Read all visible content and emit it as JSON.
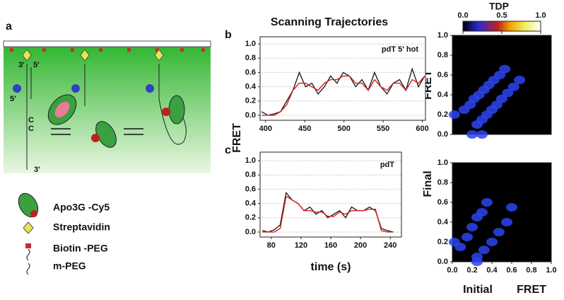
{
  "panel_a": {
    "label": "a",
    "strand_labels": [
      "3'",
      "5'",
      "5'",
      "C",
      "C",
      "3'"
    ],
    "legend": [
      "Apo3G -Cy5",
      "Streptavidin",
      "Biotin -PEG",
      "m-PEG"
    ]
  },
  "trajectories": {
    "title": "Scanning Trajectories",
    "ylabel": "FRET",
    "xlabel": "time (s)"
  },
  "tdp": {
    "title": "TDP",
    "colorbar_ticks": [
      {
        "value": 0,
        "label": "0.0"
      },
      {
        "value": 0.5,
        "label": "0.5"
      },
      {
        "value": 1,
        "label": "1.0"
      }
    ],
    "ylabel": [
      "Final",
      "FRET"
    ],
    "xlabel": [
      "Initial",
      "FRET"
    ]
  },
  "chart_data": [
    {
      "type": "line",
      "label": "b",
      "annotation": "pdT 5' hot",
      "x": [
        395,
        403,
        411,
        419,
        427,
        435,
        443,
        451,
        459,
        467,
        475,
        483,
        491,
        499,
        507,
        515,
        523,
        531,
        539,
        547,
        555,
        563,
        571,
        579,
        587,
        595,
        603
      ],
      "series": [
        {
          "color": "#222222",
          "values": [
            0.05,
            0.0,
            0.02,
            0.05,
            0.2,
            0.35,
            0.6,
            0.4,
            0.45,
            0.3,
            0.4,
            0.55,
            0.45,
            0.6,
            0.55,
            0.4,
            0.5,
            0.35,
            0.6,
            0.4,
            0.3,
            0.45,
            0.5,
            0.35,
            0.65,
            0.4,
            0.55
          ]
        },
        {
          "color": "#d62020",
          "values": [
            0.0,
            0.0,
            0.0,
            0.05,
            0.15,
            0.35,
            0.45,
            0.45,
            0.4,
            0.35,
            0.45,
            0.5,
            0.5,
            0.55,
            0.55,
            0.45,
            0.45,
            0.35,
            0.5,
            0.4,
            0.35,
            0.45,
            0.45,
            0.35,
            0.5,
            0.45,
            0.55
          ]
        }
      ],
      "xlim": [
        393,
        604
      ],
      "ylim": [
        -0.07,
        1.1
      ],
      "xticks": [
        400,
        450,
        500,
        550,
        600
      ],
      "yticks": [
        {
          "value": 0,
          "label": "0.0"
        },
        {
          "value": 0.2,
          "label": "0.2"
        },
        {
          "value": 0.4,
          "label": "0.4"
        },
        {
          "value": 0.6,
          "label": "0.6"
        },
        {
          "value": 0.8,
          "label": "0.8"
        },
        {
          "value": 1,
          "label": "1.0"
        }
      ],
      "grid": true
    },
    {
      "type": "line",
      "label": "c",
      "annotation": "pdT",
      "x": [
        68,
        76,
        84,
        92,
        100,
        108,
        116,
        124,
        132,
        140,
        148,
        156,
        164,
        172,
        180,
        188,
        196,
        204,
        212,
        220,
        228,
        236,
        244
      ],
      "series": [
        {
          "color": "#222222",
          "values": [
            0.02,
            0.0,
            0.03,
            0.1,
            0.55,
            0.45,
            0.4,
            0.3,
            0.35,
            0.25,
            0.3,
            0.2,
            0.25,
            0.3,
            0.2,
            0.35,
            0.3,
            0.3,
            0.35,
            0.3,
            0.05,
            0.02,
            0.0
          ]
        },
        {
          "color": "#d62020",
          "values": [
            0,
            0,
            0,
            0.05,
            0.5,
            0.45,
            0.4,
            0.3,
            0.3,
            0.28,
            0.28,
            0.22,
            0.22,
            0.28,
            0.25,
            0.3,
            0.3,
            0.3,
            0.32,
            0.32,
            0.02,
            0.0,
            0.0
          ]
        }
      ],
      "xlim": [
        65,
        255
      ],
      "ylim": [
        -0.07,
        1.12
      ],
      "xticks": [
        80,
        120,
        160,
        200,
        240
      ],
      "yticks": [
        {
          "value": 0,
          "label": "0.0"
        },
        {
          "value": 0.2,
          "label": "0.2"
        },
        {
          "value": 0.4,
          "label": "0.4"
        },
        {
          "value": 0.6,
          "label": "0.6"
        },
        {
          "value": 0.8,
          "label": "0.8"
        },
        {
          "value": 1,
          "label": "1.0"
        }
      ],
      "grid": true
    },
    {
      "type": "scatter",
      "color": "#2b44f0",
      "x": [
        0.12,
        0.18,
        0.22,
        0.27,
        0.32,
        0.37,
        0.42,
        0.48,
        0.53,
        0.25,
        0.3,
        0.35,
        0.4,
        0.45,
        0.5,
        0.56,
        0.62,
        0.68,
        0.02,
        0.2,
        0.3
      ],
      "values": [
        0.25,
        0.3,
        0.36,
        0.4,
        0.45,
        0.5,
        0.55,
        0.6,
        0.66,
        0.1,
        0.15,
        0.2,
        0.25,
        0.3,
        0.36,
        0.42,
        0.48,
        0.55,
        0.2,
        0.0,
        0.0
      ],
      "xlim": [
        0,
        1
      ],
      "ylim": [
        0,
        1
      ],
      "yticks": [
        {
          "value": 0,
          "label": "0.0"
        },
        {
          "value": 0.2,
          "label": "0.2"
        },
        {
          "value": 0.4,
          "label": "0.4"
        },
        {
          "value": 0.6,
          "label": "0.6"
        },
        {
          "value": 0.8,
          "label": "0.8"
        },
        {
          "value": 1,
          "label": "1.0"
        }
      ]
    },
    {
      "type": "scatter",
      "color": "#2b44f0",
      "x": [
        0.08,
        0.15,
        0.2,
        0.25,
        0.3,
        0.35,
        0.25,
        0.32,
        0.4,
        0.47,
        0.55,
        0.6,
        0.02,
        0.25
      ],
      "values": [
        0.15,
        0.25,
        0.35,
        0.45,
        0.5,
        0.6,
        0.05,
        0.12,
        0.2,
        0.3,
        0.4,
        0.55,
        0.2,
        0.0
      ],
      "xlim": [
        0,
        1
      ],
      "ylim": [
        0,
        1
      ],
      "xticks": [
        {
          "value": 0,
          "label": "0.0"
        },
        {
          "value": 0.2,
          "label": "0.2"
        },
        {
          "value": 0.4,
          "label": "0.4"
        },
        {
          "value": 0.6,
          "label": "0.6"
        },
        {
          "value": 0.8,
          "label": "0.8"
        },
        {
          "value": 1,
          "label": "1.0"
        }
      ],
      "yticks": [
        {
          "value": 0,
          "label": "0.0"
        },
        {
          "value": 0.2,
          "label": "0.2"
        },
        {
          "value": 0.4,
          "label": "0.4"
        },
        {
          "value": 0.6,
          "label": "0.6"
        },
        {
          "value": 0.8,
          "label": "0.8"
        },
        {
          "value": 1,
          "label": "1.0"
        }
      ]
    }
  ]
}
